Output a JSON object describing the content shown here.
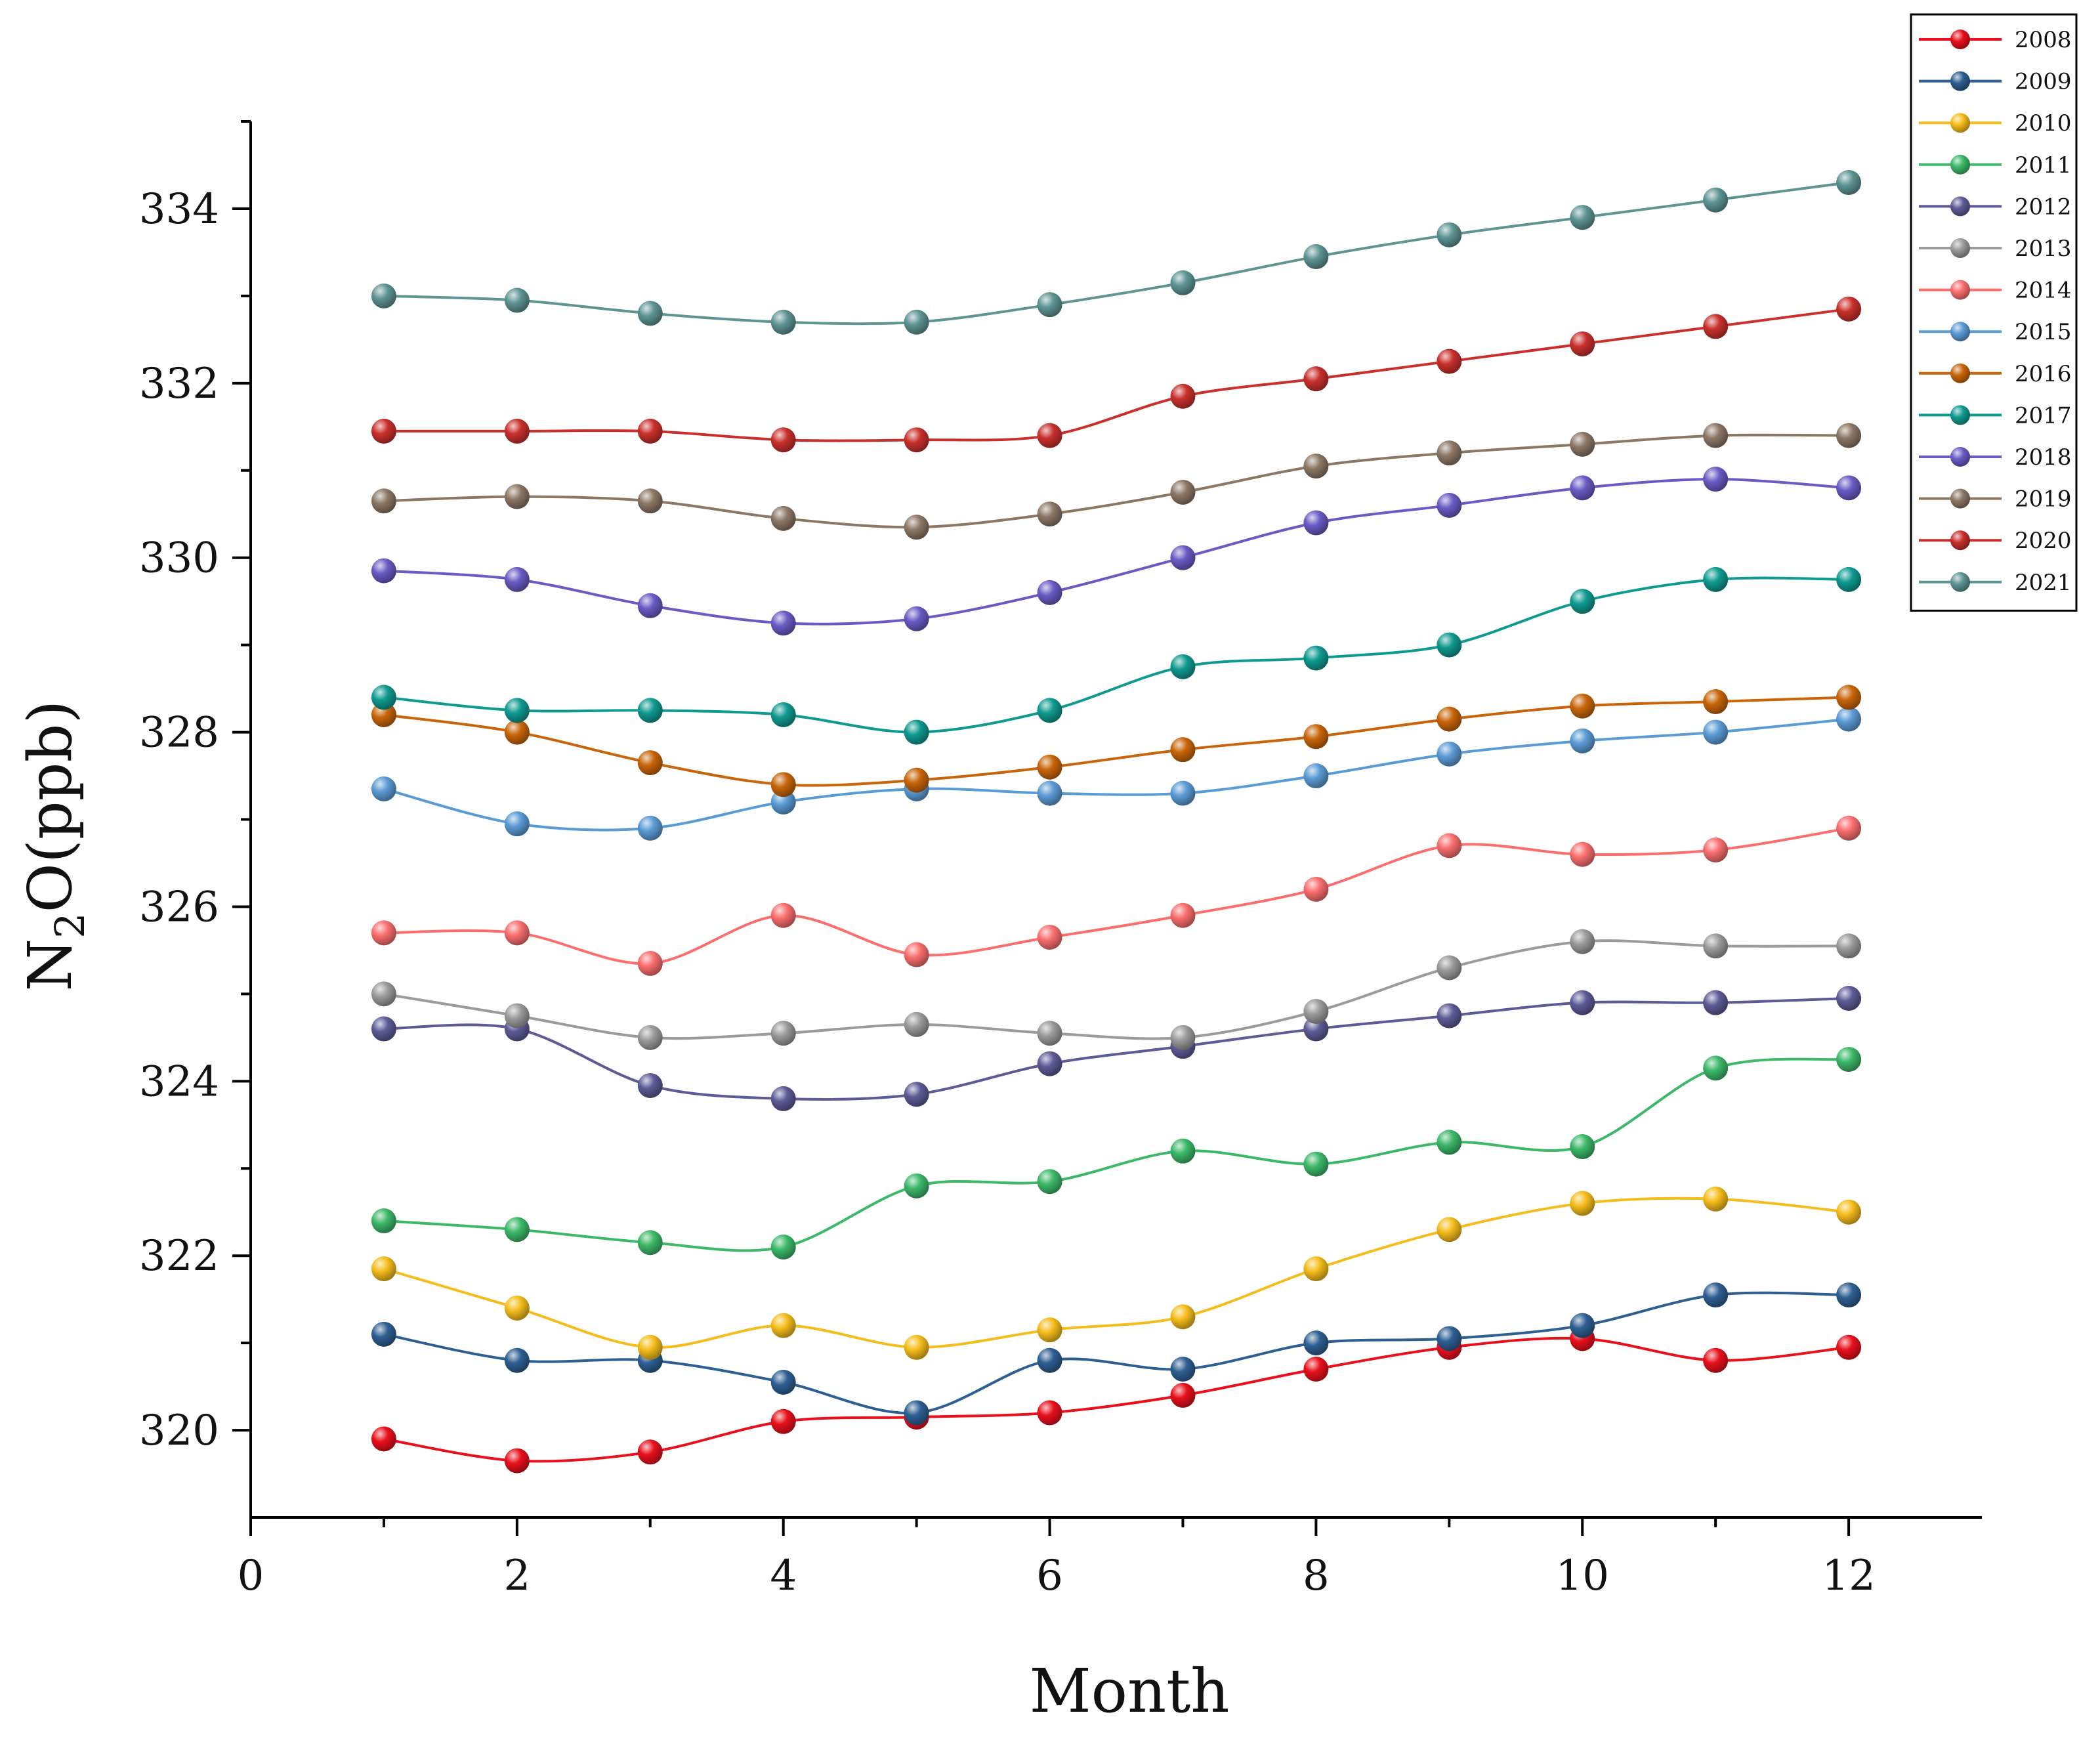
{
  "chart_data": {
    "type": "line",
    "title": "",
    "xlabel": "Month",
    "ylabel_main": "N",
    "ylabel_sub": "2",
    "ylabel_rest": "O(ppb)",
    "xlim": [
      0,
      13
    ],
    "ylim": [
      319,
      335
    ],
    "xticks": [
      0,
      2,
      4,
      6,
      8,
      10,
      12
    ],
    "xticks_minor": [
      1,
      3,
      5,
      7,
      9,
      11
    ],
    "yticks": [
      320,
      322,
      324,
      326,
      328,
      330,
      332,
      334
    ],
    "yticks_minor": [
      321,
      323,
      325,
      327,
      329,
      331,
      333,
      335
    ],
    "grid": false,
    "legend_position": "top-right",
    "x": [
      1,
      2,
      3,
      4,
      5,
      6,
      7,
      8,
      9,
      10,
      11,
      12
    ],
    "series": [
      {
        "name": "2008",
        "color": "#e8101c",
        "values": [
          319.9,
          319.65,
          319.75,
          320.1,
          320.15,
          320.2,
          320.4,
          320.7,
          320.95,
          321.05,
          320.8,
          320.95
        ]
      },
      {
        "name": "2009",
        "color": "#2e5f92",
        "values": [
          321.1,
          320.8,
          320.8,
          320.55,
          320.2,
          320.8,
          320.7,
          321.0,
          321.05,
          321.2,
          321.55,
          321.55
        ]
      },
      {
        "name": "2010",
        "color": "#f5bd1c",
        "values": [
          321.85,
          321.4,
          320.95,
          321.2,
          320.95,
          321.15,
          321.3,
          321.85,
          322.3,
          322.6,
          322.65,
          322.5
        ]
      },
      {
        "name": "2011",
        "color": "#3cb868",
        "values": [
          322.4,
          322.3,
          322.15,
          322.1,
          322.8,
          322.85,
          323.2,
          323.05,
          323.3,
          323.25,
          324.15,
          324.25
        ]
      },
      {
        "name": "2012",
        "color": "#5d5b96",
        "values": [
          324.6,
          324.6,
          323.95,
          323.8,
          323.85,
          324.2,
          324.4,
          324.6,
          324.75,
          324.9,
          324.9,
          324.95
        ]
      },
      {
        "name": "2013",
        "color": "#9b9b9b",
        "values": [
          325.0,
          324.75,
          324.5,
          324.55,
          324.65,
          324.55,
          324.5,
          324.8,
          325.3,
          325.6,
          325.55,
          325.55
        ]
      },
      {
        "name": "2014",
        "color": "#fa6e6e",
        "values": [
          325.7,
          325.7,
          325.35,
          325.9,
          325.45,
          325.65,
          325.9,
          326.2,
          326.7,
          326.6,
          326.65,
          326.9
        ]
      },
      {
        "name": "2015",
        "color": "#5b9bd5",
        "values": [
          327.35,
          326.95,
          326.9,
          327.2,
          327.35,
          327.3,
          327.3,
          327.5,
          327.75,
          327.9,
          328.0,
          328.15
        ]
      },
      {
        "name": "2016",
        "color": "#c8650a",
        "values": [
          328.2,
          328.0,
          327.65,
          327.4,
          327.45,
          327.6,
          327.8,
          327.95,
          328.15,
          328.3,
          328.35,
          328.4
        ]
      },
      {
        "name": "2017",
        "color": "#0f9a90",
        "values": [
          328.4,
          328.25,
          328.25,
          328.2,
          328.0,
          328.25,
          328.75,
          328.85,
          329.0,
          329.5,
          329.75,
          329.75
        ]
      },
      {
        "name": "2018",
        "color": "#6a5bc4",
        "values": [
          329.85,
          329.75,
          329.45,
          329.25,
          329.3,
          329.6,
          330.0,
          330.4,
          330.6,
          330.8,
          330.9,
          330.8
        ]
      },
      {
        "name": "2019",
        "color": "#8c7765",
        "values": [
          330.65,
          330.7,
          330.65,
          330.45,
          330.35,
          330.5,
          330.75,
          331.05,
          331.2,
          331.3,
          331.4,
          331.4
        ]
      },
      {
        "name": "2020",
        "color": "#c9302c",
        "values": [
          331.45,
          331.45,
          331.45,
          331.35,
          331.35,
          331.4,
          331.85,
          332.05,
          332.25,
          332.45,
          332.65,
          332.85
        ]
      },
      {
        "name": "2021",
        "color": "#5e9494",
        "values": [
          333.0,
          332.95,
          332.8,
          332.7,
          332.7,
          332.9,
          333.15,
          333.45,
          333.7,
          333.9,
          334.1,
          334.3
        ]
      }
    ]
  }
}
